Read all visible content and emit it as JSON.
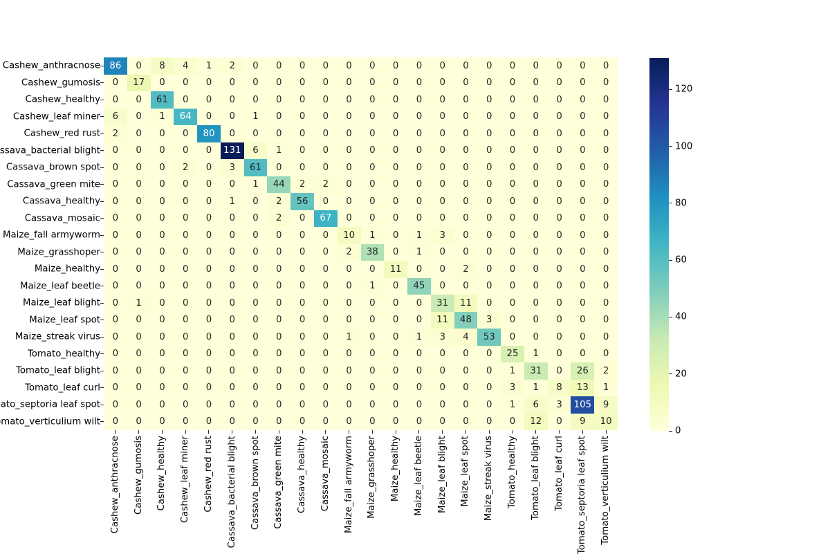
{
  "chart_data": {
    "type": "heatmap",
    "title": "",
    "xlabel": "",
    "ylabel": "",
    "background_color": "#ffffff",
    "colormap": "YlGnBu",
    "colormap_stops": [
      "#ffffd9",
      "#edf8b1",
      "#c7e9b4",
      "#7fcdbb",
      "#41b6c4",
      "#1d91c0",
      "#225ea8",
      "#253494",
      "#081d58"
    ],
    "annotation_color_dark": "#262626",
    "annotation_color_light": "#ffffff",
    "vmin": 0,
    "vmax": 131,
    "colorbar_position": "right",
    "colorbar_ticks": [
      0,
      20,
      40,
      60,
      80,
      100,
      120
    ],
    "x_tick_rotation": 90,
    "grid": false,
    "categories": [
      "Cashew_anthracnose",
      "Cashew_gumosis",
      "Cashew_healthy",
      "Cashew_leaf miner",
      "Cashew_red rust",
      "Cassava_bacterial blight",
      "Cassava_brown spot",
      "Cassava_green mite",
      "Cassava_healthy",
      "Cassava_mosaic",
      "Maize_fall armyworm",
      "Maize_grasshoper",
      "Maize_healthy",
      "Maize_leaf beetle",
      "Maize_leaf blight",
      "Maize_leaf spot",
      "Maize_streak virus",
      "Tomato_healthy",
      "Tomato_leaf blight",
      "Tomato_leaf curl",
      "Tomato_septoria leaf spot",
      "Tomato_verticulium wilt"
    ],
    "matrix": [
      [
        86,
        0,
        8,
        4,
        1,
        2,
        0,
        0,
        0,
        0,
        0,
        0,
        0,
        0,
        0,
        0,
        0,
        0,
        0,
        0,
        0,
        0
      ],
      [
        0,
        17,
        0,
        0,
        0,
        0,
        0,
        0,
        0,
        0,
        0,
        0,
        0,
        0,
        0,
        0,
        0,
        0,
        0,
        0,
        0,
        0
      ],
      [
        0,
        0,
        61,
        0,
        0,
        0,
        0,
        0,
        0,
        0,
        0,
        0,
        0,
        0,
        0,
        0,
        0,
        0,
        0,
        0,
        0,
        0
      ],
      [
        6,
        0,
        1,
        64,
        0,
        0,
        1,
        0,
        0,
        0,
        0,
        0,
        0,
        0,
        0,
        0,
        0,
        0,
        0,
        0,
        0,
        0
      ],
      [
        2,
        0,
        0,
        0,
        80,
        0,
        0,
        0,
        0,
        0,
        0,
        0,
        0,
        0,
        0,
        0,
        0,
        0,
        0,
        0,
        0,
        0
      ],
      [
        0,
        0,
        0,
        0,
        0,
        131,
        6,
        1,
        0,
        0,
        0,
        0,
        0,
        0,
        0,
        0,
        0,
        0,
        0,
        0,
        0,
        0
      ],
      [
        0,
        0,
        0,
        2,
        0,
        3,
        61,
        0,
        0,
        0,
        0,
        0,
        0,
        0,
        0,
        0,
        0,
        0,
        0,
        0,
        0,
        0
      ],
      [
        0,
        0,
        0,
        0,
        0,
        0,
        1,
        44,
        2,
        2,
        0,
        0,
        0,
        0,
        0,
        0,
        0,
        0,
        0,
        0,
        0,
        0
      ],
      [
        0,
        0,
        0,
        0,
        0,
        1,
        0,
        2,
        56,
        0,
        0,
        0,
        0,
        0,
        0,
        0,
        0,
        0,
        0,
        0,
        0,
        0
      ],
      [
        0,
        0,
        0,
        0,
        0,
        0,
        0,
        2,
        0,
        67,
        0,
        0,
        0,
        0,
        0,
        0,
        0,
        0,
        0,
        0,
        0,
        0
      ],
      [
        0,
        0,
        0,
        0,
        0,
        0,
        0,
        0,
        0,
        0,
        10,
        1,
        0,
        1,
        3,
        0,
        0,
        0,
        0,
        0,
        0,
        0
      ],
      [
        0,
        0,
        0,
        0,
        0,
        0,
        0,
        0,
        0,
        0,
        2,
        38,
        0,
        1,
        0,
        0,
        0,
        0,
        0,
        0,
        0,
        0
      ],
      [
        0,
        0,
        0,
        0,
        0,
        0,
        0,
        0,
        0,
        0,
        0,
        0,
        11,
        0,
        0,
        2,
        0,
        0,
        0,
        0,
        0,
        0
      ],
      [
        0,
        0,
        0,
        0,
        0,
        0,
        0,
        0,
        0,
        0,
        0,
        1,
        0,
        45,
        0,
        0,
        0,
        0,
        0,
        0,
        0,
        0
      ],
      [
        0,
        1,
        0,
        0,
        0,
        0,
        0,
        0,
        0,
        0,
        0,
        0,
        0,
        0,
        31,
        11,
        0,
        0,
        0,
        0,
        0,
        0
      ],
      [
        0,
        0,
        0,
        0,
        0,
        0,
        0,
        0,
        0,
        0,
        0,
        0,
        0,
        0,
        11,
        48,
        3,
        0,
        0,
        0,
        0,
        0
      ],
      [
        0,
        0,
        0,
        0,
        0,
        0,
        0,
        0,
        0,
        0,
        1,
        0,
        0,
        1,
        3,
        4,
        53,
        0,
        0,
        0,
        0,
        0
      ],
      [
        0,
        0,
        0,
        0,
        0,
        0,
        0,
        0,
        0,
        0,
        0,
        0,
        0,
        0,
        0,
        0,
        0,
        25,
        1,
        0,
        0,
        0
      ],
      [
        0,
        0,
        0,
        0,
        0,
        0,
        0,
        0,
        0,
        0,
        0,
        0,
        0,
        0,
        0,
        0,
        0,
        1,
        31,
        0,
        26,
        2
      ],
      [
        0,
        0,
        0,
        0,
        0,
        0,
        0,
        0,
        0,
        0,
        0,
        0,
        0,
        0,
        0,
        0,
        0,
        3,
        1,
        8,
        13,
        1
      ],
      [
        0,
        0,
        0,
        0,
        0,
        0,
        0,
        0,
        0,
        0,
        0,
        0,
        0,
        0,
        0,
        0,
        0,
        1,
        6,
        3,
        105,
        9
      ],
      [
        0,
        0,
        0,
        0,
        0,
        0,
        0,
        0,
        0,
        0,
        0,
        0,
        0,
        0,
        0,
        0,
        0,
        0,
        12,
        0,
        9,
        10
      ]
    ]
  }
}
